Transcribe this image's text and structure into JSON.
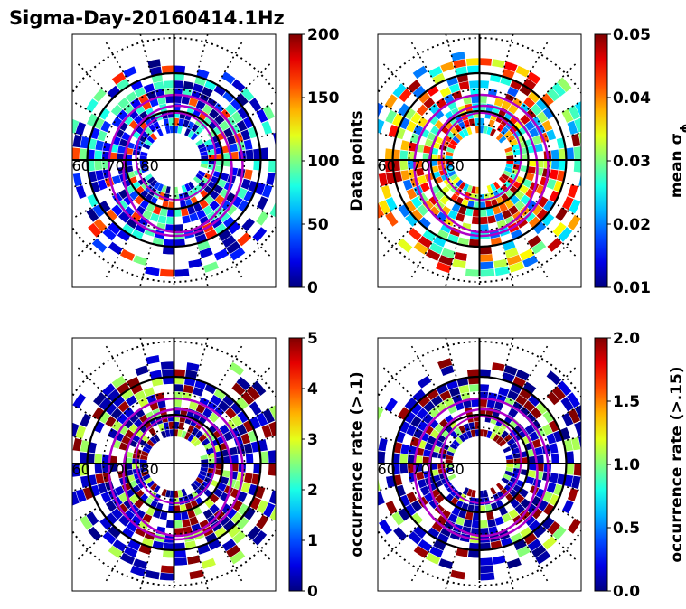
{
  "figure_title": "Sigma-Day-20160414.1Hz",
  "chart_data": [
    {
      "type": "heatmap",
      "projection": "polar (magnetic latitude / magnetic local time)",
      "colormap": "jet",
      "colorbar": {
        "label": "Data points",
        "ticks": [
          "0",
          "50",
          "100",
          "150",
          "200"
        ],
        "range": [
          0,
          200
        ]
      },
      "latitude_labels": [
        "60",
        "70",
        "80"
      ],
      "seed": 11,
      "distribution": "low",
      "fill": 0.78
    },
    {
      "type": "heatmap",
      "projection": "polar (magnetic latitude / magnetic local time)",
      "colormap": "jet",
      "colorbar": {
        "label_text": "mean σ",
        "label_subscript": "ϕ",
        "ticks": [
          "0.01",
          "0.02",
          "0.03",
          "0.04",
          "0.05"
        ],
        "range": [
          0.01,
          0.05
        ]
      },
      "latitude_labels": [
        "60",
        "70",
        "80"
      ],
      "seed": 23,
      "distribution": "mid",
      "fill": 0.82
    },
    {
      "type": "heatmap",
      "projection": "polar (magnetic latitude / magnetic local time)",
      "colormap": "jet",
      "colorbar": {
        "label": "occurrence rate (>.1)",
        "ticks": [
          "0",
          "1",
          "2",
          "3",
          "4",
          "5"
        ],
        "range": [
          0,
          5
        ]
      },
      "latitude_labels": [
        "60",
        "70",
        "80"
      ],
      "seed": 37,
      "distribution": "bimodal",
      "fill": 0.8
    },
    {
      "type": "heatmap",
      "projection": "polar (magnetic latitude / magnetic local time)",
      "colormap": "jet",
      "colorbar": {
        "label": "occurrence rate (>.15)",
        "ticks": [
          "0.0",
          "0.5",
          "1.0",
          "1.5",
          "2.0"
        ],
        "range": [
          0,
          2
        ]
      },
      "latitude_labels": [
        "60",
        "70",
        "80"
      ],
      "seed": 53,
      "distribution": "bimodal",
      "fill": 0.8
    }
  ]
}
